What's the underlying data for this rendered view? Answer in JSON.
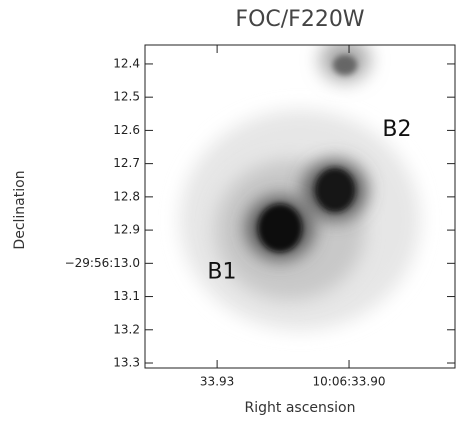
{
  "chart_data": {
    "type": "image",
    "title": "FOC/F220W",
    "x_label": "Right ascension",
    "y_label": "Declination",
    "xlim": [
      33.9464,
      33.8759
    ],
    "xticks": [
      33.93,
      {
        "value": 33.9,
        "label": "10:06:33.90"
      }
    ],
    "ylim": [
      12.343,
      13.315
    ],
    "y_inverted": true,
    "yticks": [
      12.4,
      12.5,
      12.6,
      12.7,
      12.8,
      12.9,
      {
        "value": 13.0,
        "label": "−29:56:13.0"
      },
      13.1,
      13.2,
      13.3
    ],
    "annotations": [
      {
        "text": "B1",
        "x": 33.9289,
        "y": 13.027
      },
      {
        "text": "B2",
        "x": 33.8891,
        "y": 12.599
      }
    ]
  }
}
